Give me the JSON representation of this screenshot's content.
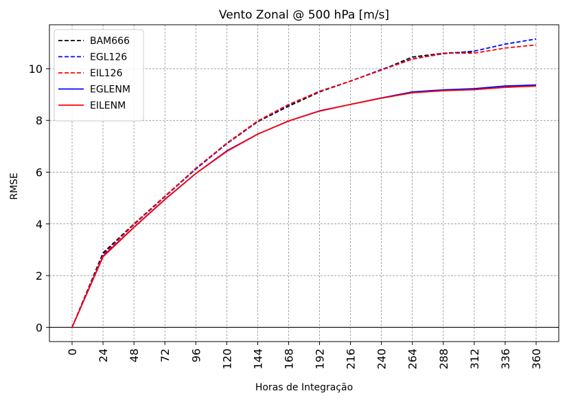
{
  "chart_data": {
    "type": "line",
    "title": "Vento Zonal @ 500 hPa [m/s]",
    "xlabel": "Horas de Integração",
    "ylabel": "RMSE",
    "x": [
      0,
      24,
      48,
      72,
      96,
      120,
      144,
      168,
      192,
      216,
      240,
      264,
      288,
      312,
      336,
      360
    ],
    "x_tick_labels": [
      "0",
      "24",
      "48",
      "72",
      "96",
      "120",
      "144",
      "168",
      "192",
      "216",
      "240",
      "264",
      "288",
      "312",
      "336",
      "360"
    ],
    "y_ticks": [
      0,
      2,
      4,
      6,
      8,
      10
    ],
    "y_tick_labels": [
      "0",
      "2",
      "4",
      "6",
      "8",
      "10"
    ],
    "ylim": [
      -0.55,
      11.7
    ],
    "grid": true,
    "legend_position": "top-left",
    "series": [
      {
        "name": "BAM666",
        "color": "#000000",
        "style": "dashed",
        "values": [
          0,
          2.88,
          4.0,
          5.07,
          6.13,
          7.1,
          7.95,
          8.55,
          9.1,
          9.52,
          9.95,
          10.45,
          10.6,
          10.65,
          null,
          null
        ]
      },
      {
        "name": "EGL126",
        "color": "#0000ff",
        "style": "dashed",
        "values": [
          0,
          2.82,
          3.97,
          5.05,
          6.12,
          7.1,
          7.97,
          8.6,
          9.13,
          9.52,
          9.97,
          10.38,
          10.58,
          10.68,
          10.95,
          11.15
        ]
      },
      {
        "name": "EIL126",
        "color": "#ff0000",
        "style": "dashed",
        "values": [
          0,
          2.8,
          3.98,
          5.06,
          6.15,
          7.12,
          7.98,
          8.62,
          9.12,
          9.52,
          9.95,
          10.37,
          10.6,
          10.6,
          10.8,
          10.92
        ]
      },
      {
        "name": "EGLENM",
        "color": "#0000ff",
        "style": "solid",
        "values": [
          0,
          2.75,
          3.87,
          4.95,
          5.95,
          6.82,
          7.47,
          7.98,
          8.37,
          8.62,
          8.87,
          9.1,
          9.18,
          9.23,
          9.33,
          9.37
        ]
      },
      {
        "name": "EILENM",
        "color": "#ff0000",
        "style": "solid",
        "values": [
          0,
          2.73,
          3.86,
          4.94,
          5.95,
          6.8,
          7.47,
          7.98,
          8.36,
          8.62,
          8.86,
          9.07,
          9.15,
          9.19,
          9.28,
          9.33
        ]
      }
    ]
  }
}
